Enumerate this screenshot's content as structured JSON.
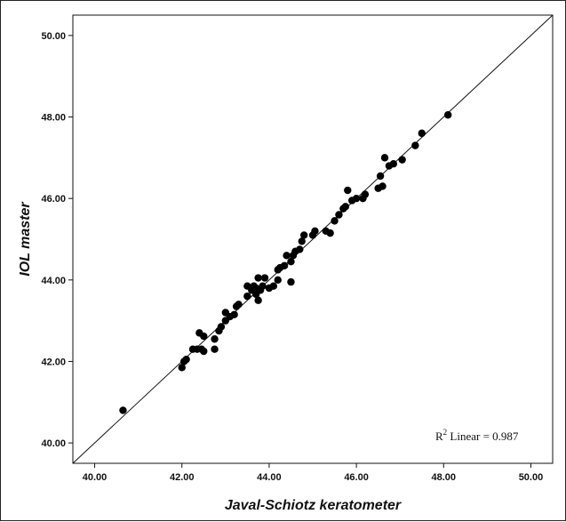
{
  "chart_data": {
    "type": "scatter",
    "xlabel": "Javal-Schiotz keratometer",
    "ylabel": "IOL master",
    "xlim": [
      39.5,
      50.5
    ],
    "ylim": [
      39.5,
      50.5
    ],
    "xticks": [
      "40.00",
      "42.00",
      "44.00",
      "46.00",
      "48.00",
      "50.00"
    ],
    "yticks": [
      "40.00",
      "42.00",
      "44.00",
      "46.00",
      "48.00",
      "50.00"
    ],
    "grid": false,
    "annotation": {
      "r_symbol": "R",
      "sup": "2",
      "text": " Linear = 0.987"
    },
    "fit_line": {
      "from": [
        39.5,
        39.5
      ],
      "to": [
        50.5,
        50.5
      ]
    },
    "points": [
      [
        40.65,
        40.8
      ],
      [
        42.0,
        41.85
      ],
      [
        42.05,
        42.0
      ],
      [
        42.1,
        42.05
      ],
      [
        42.25,
        42.3
      ],
      [
        42.35,
        42.3
      ],
      [
        42.4,
        42.7
      ],
      [
        42.45,
        42.3
      ],
      [
        42.5,
        42.62
      ],
      [
        42.5,
        42.25
      ],
      [
        42.75,
        42.3
      ],
      [
        42.75,
        42.55
      ],
      [
        42.85,
        42.75
      ],
      [
        42.9,
        42.85
      ],
      [
        43.0,
        43.0
      ],
      [
        43.0,
        43.2
      ],
      [
        43.1,
        43.1
      ],
      [
        43.2,
        43.15
      ],
      [
        43.25,
        43.35
      ],
      [
        43.3,
        43.4
      ],
      [
        43.5,
        43.6
      ],
      [
        43.5,
        43.85
      ],
      [
        43.6,
        43.75
      ],
      [
        43.65,
        43.85
      ],
      [
        43.7,
        43.65
      ],
      [
        43.7,
        43.8
      ],
      [
        43.75,
        43.5
      ],
      [
        43.75,
        44.05
      ],
      [
        43.8,
        43.75
      ],
      [
        43.85,
        43.85
      ],
      [
        43.9,
        44.05
      ],
      [
        44.0,
        43.8
      ],
      [
        44.1,
        43.85
      ],
      [
        44.2,
        44.0
      ],
      [
        44.2,
        44.25
      ],
      [
        44.25,
        44.3
      ],
      [
        44.35,
        44.35
      ],
      [
        44.4,
        44.6
      ],
      [
        44.5,
        44.45
      ],
      [
        44.5,
        43.95
      ],
      [
        44.55,
        44.6
      ],
      [
        44.6,
        44.7
      ],
      [
        44.7,
        44.75
      ],
      [
        44.75,
        44.95
      ],
      [
        44.8,
        45.1
      ],
      [
        45.0,
        45.1
      ],
      [
        45.05,
        45.2
      ],
      [
        45.3,
        45.2
      ],
      [
        45.4,
        45.15
      ],
      [
        45.5,
        45.45
      ],
      [
        45.6,
        45.6
      ],
      [
        45.7,
        45.75
      ],
      [
        45.75,
        45.8
      ],
      [
        45.8,
        46.2
      ],
      [
        45.9,
        45.95
      ],
      [
        46.0,
        46.0
      ],
      [
        46.15,
        46.0
      ],
      [
        46.2,
        46.1
      ],
      [
        46.5,
        46.25
      ],
      [
        46.55,
        46.55
      ],
      [
        46.6,
        46.3
      ],
      [
        46.65,
        47.0
      ],
      [
        46.75,
        46.8
      ],
      [
        46.85,
        46.85
      ],
      [
        47.05,
        46.95
      ],
      [
        47.35,
        47.3
      ],
      [
        47.5,
        47.6
      ],
      [
        48.1,
        48.05
      ]
    ]
  }
}
